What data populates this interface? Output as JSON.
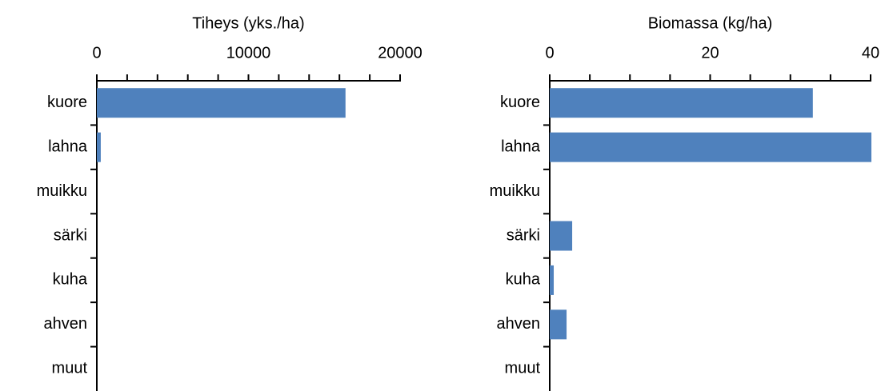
{
  "chart_data": [
    {
      "type": "bar",
      "orientation": "horizontal",
      "x_label": "Tiheys (yks./ha)",
      "categories": [
        "kuore",
        "lahna",
        "muikku",
        "särki",
        "kuha",
        "ahven",
        "muut"
      ],
      "values": [
        16400,
        260,
        0,
        0,
        0,
        0,
        0
      ],
      "color": "#4f81bd",
      "xlim": [
        0,
        20000
      ],
      "xticks": [
        0,
        10000,
        20000
      ]
    },
    {
      "type": "bar",
      "orientation": "horizontal",
      "x_label": "Biomassa (kg/ha)",
      "categories": [
        "kuore",
        "lahna",
        "muikku",
        "särki",
        "kuha",
        "ahven",
        "muut"
      ],
      "values": [
        32.8,
        40.1,
        0,
        2.8,
        0.5,
        2.1,
        0
      ],
      "color": "#4f81bd",
      "xlim": [
        0,
        40
      ],
      "xticks": [
        0,
        20,
        40
      ]
    }
  ]
}
